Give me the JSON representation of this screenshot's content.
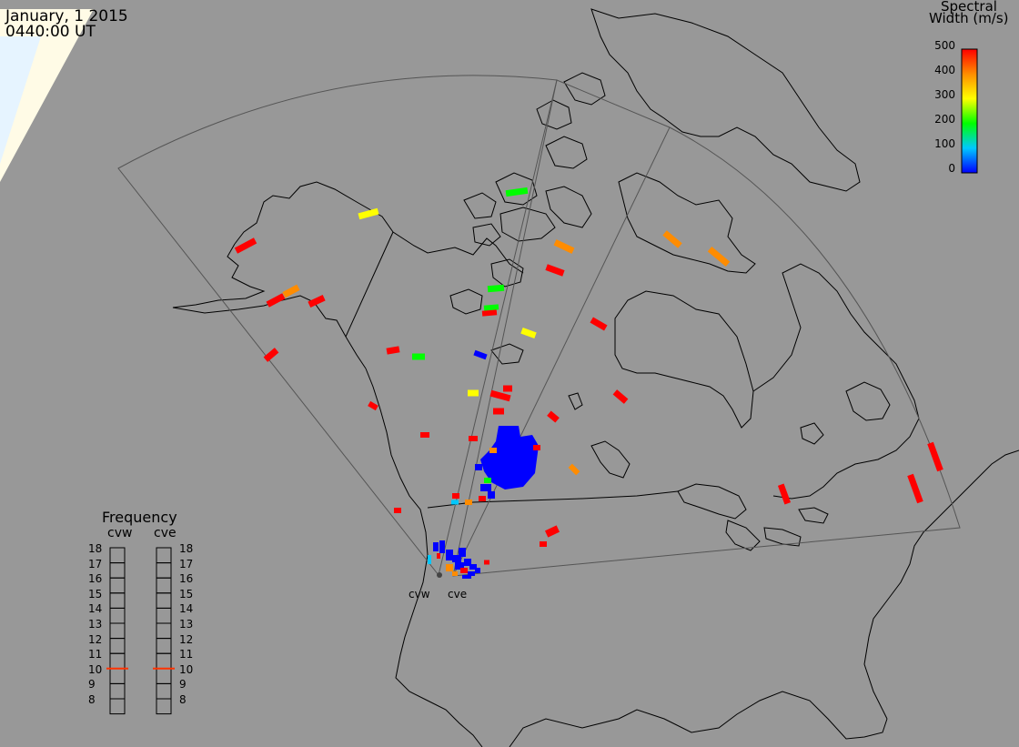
{
  "timestamp": {
    "date": "January, 1 2015",
    "time": "0440:00 UT"
  },
  "colorbar": {
    "title_line1": "Spectral",
    "title_line2": "Width (m/s)",
    "ticks": [
      "500",
      "400",
      "300",
      "200",
      "100",
      "0"
    ],
    "min": 0,
    "max": 500,
    "colors": [
      "#0000ff",
      "#00c8ff",
      "#00ff00",
      "#ffff00",
      "#ff8c00",
      "#ff0000"
    ]
  },
  "frequency_legend": {
    "title": "Frequency",
    "columns": [
      "cvw",
      "cve"
    ],
    "ticks": [
      "18",
      "17",
      "16",
      "15",
      "14",
      "13",
      "12",
      "11",
      "10",
      "9",
      "8"
    ],
    "current_mhz": {
      "cvw": 10.5,
      "cve": 10.5
    },
    "marker_color": "#ff3300"
  },
  "radars": {
    "labels": [
      "cvw",
      "cve"
    ]
  },
  "map_colors": {
    "background": "#989898",
    "outline": "#000000",
    "fov": "#555555",
    "daylight": "#fffbe6",
    "daylight_edge": "#e8f6ff"
  }
}
